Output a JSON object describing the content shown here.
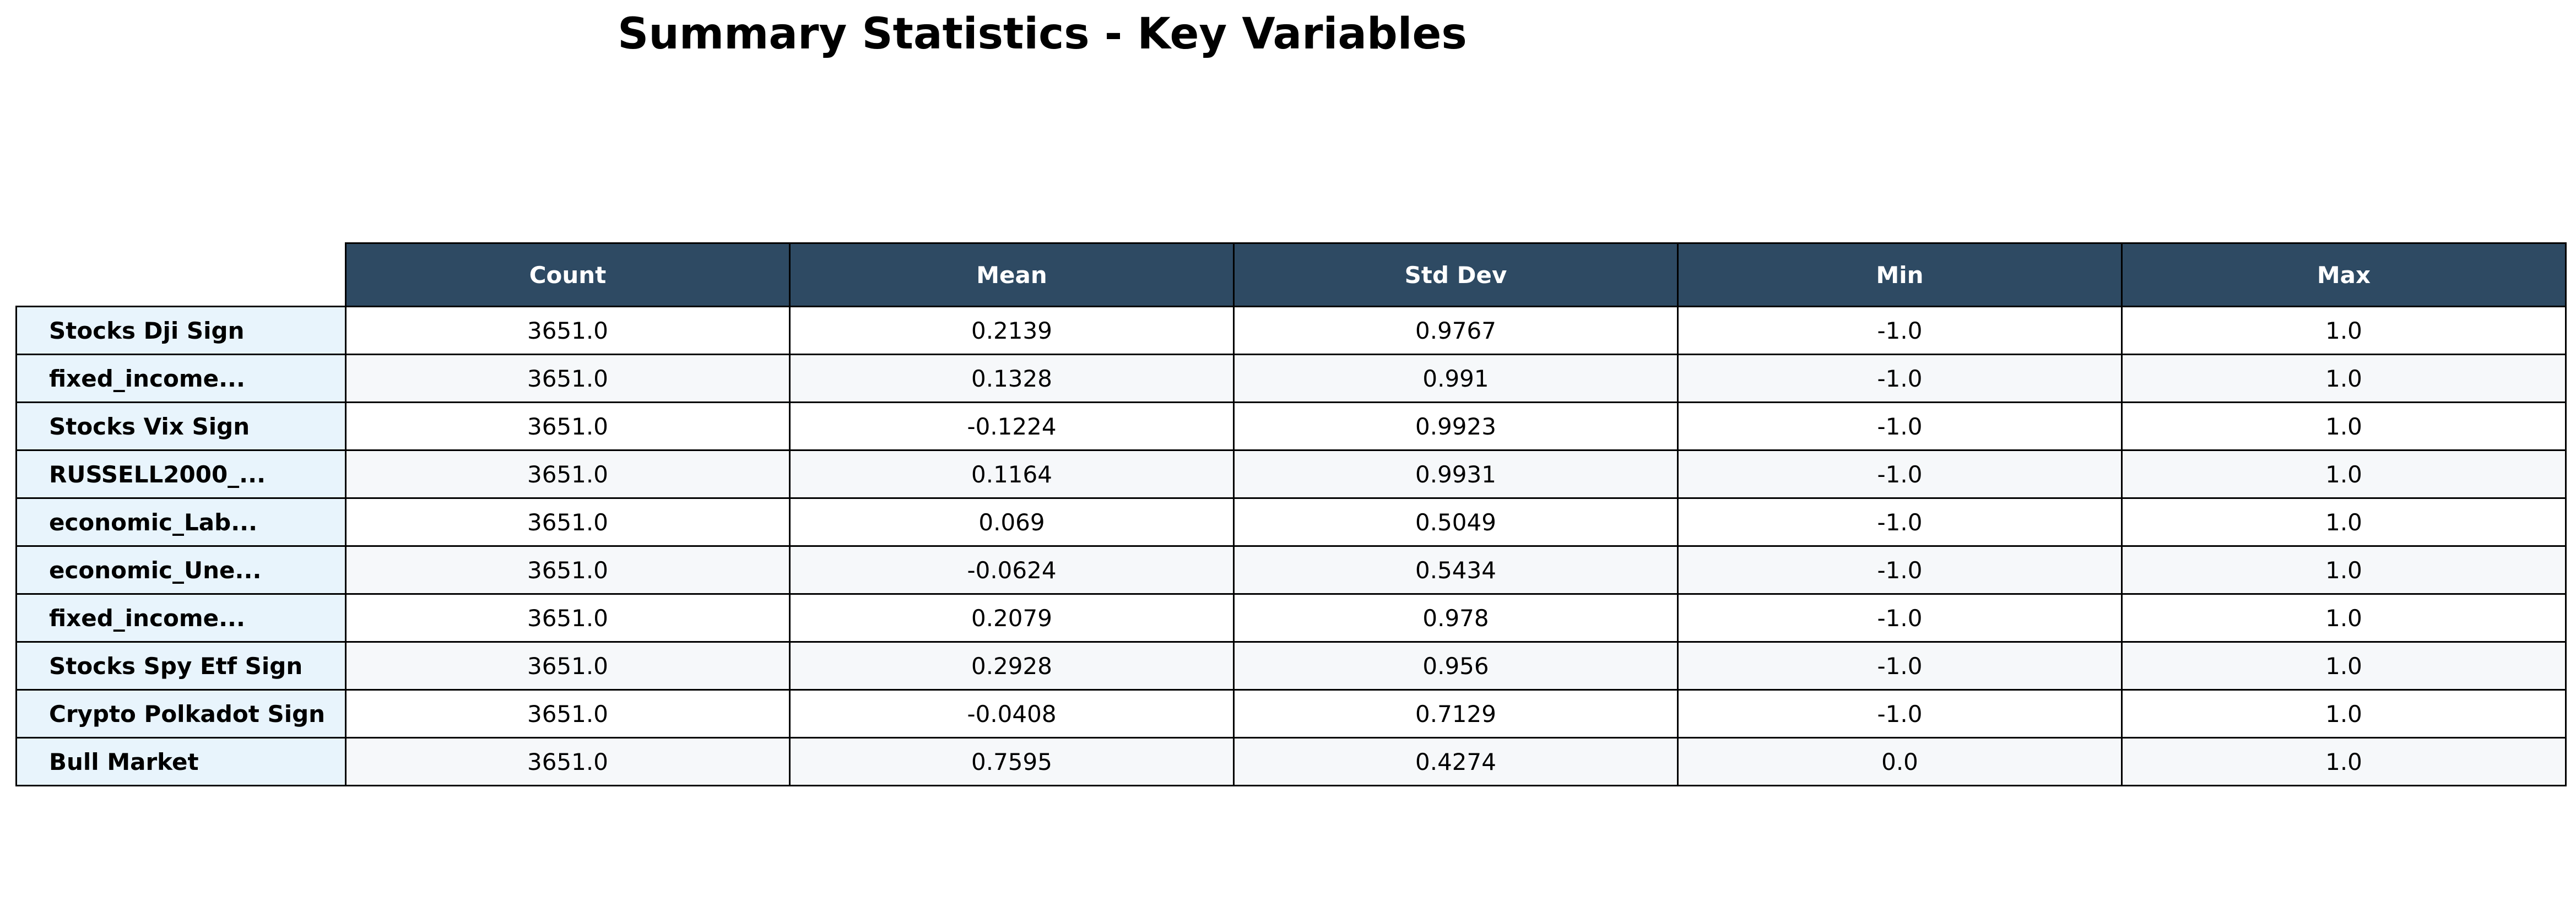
{
  "chart_data": {
    "type": "table",
    "title": "Summary Statistics - Key Variables",
    "columns": [
      "Count",
      "Mean",
      "Std Dev",
      "Min",
      "Max"
    ],
    "rows": [
      {
        "label": "Stocks Dji Sign",
        "values": [
          "3651.0",
          "0.2139",
          "0.9767",
          "-1.0",
          "1.0"
        ]
      },
      {
        "label": "fixed_income...",
        "values": [
          "3651.0",
          "0.1328",
          "0.991",
          "-1.0",
          "1.0"
        ]
      },
      {
        "label": "Stocks Vix Sign",
        "values": [
          "3651.0",
          "-0.1224",
          "0.9923",
          "-1.0",
          "1.0"
        ]
      },
      {
        "label": "RUSSELL2000_...",
        "values": [
          "3651.0",
          "0.1164",
          "0.9931",
          "-1.0",
          "1.0"
        ]
      },
      {
        "label": "economic_Lab...",
        "values": [
          "3651.0",
          "0.069",
          "0.5049",
          "-1.0",
          "1.0"
        ]
      },
      {
        "label": "economic_Une...",
        "values": [
          "3651.0",
          "-0.0624",
          "0.5434",
          "-1.0",
          "1.0"
        ]
      },
      {
        "label": "fixed_income...",
        "values": [
          "3651.0",
          "0.2079",
          "0.978",
          "-1.0",
          "1.0"
        ]
      },
      {
        "label": "Stocks Spy Etf Sign",
        "values": [
          "3651.0",
          "0.2928",
          "0.956",
          "-1.0",
          "1.0"
        ]
      },
      {
        "label": "Crypto Polkadot Sign",
        "values": [
          "3651.0",
          "-0.0408",
          "0.7129",
          "-1.0",
          "1.0"
        ]
      },
      {
        "label": "Bull Market",
        "values": [
          "3651.0",
          "0.7595",
          "0.4274",
          "0.0",
          "1.0"
        ]
      }
    ],
    "colors": {
      "header_background": "#2e4a63",
      "header_text": "#ffffff",
      "row_label_background": "#e8f4fc",
      "row_alt_background": "#f6f8fa",
      "border": "#000000"
    }
  }
}
